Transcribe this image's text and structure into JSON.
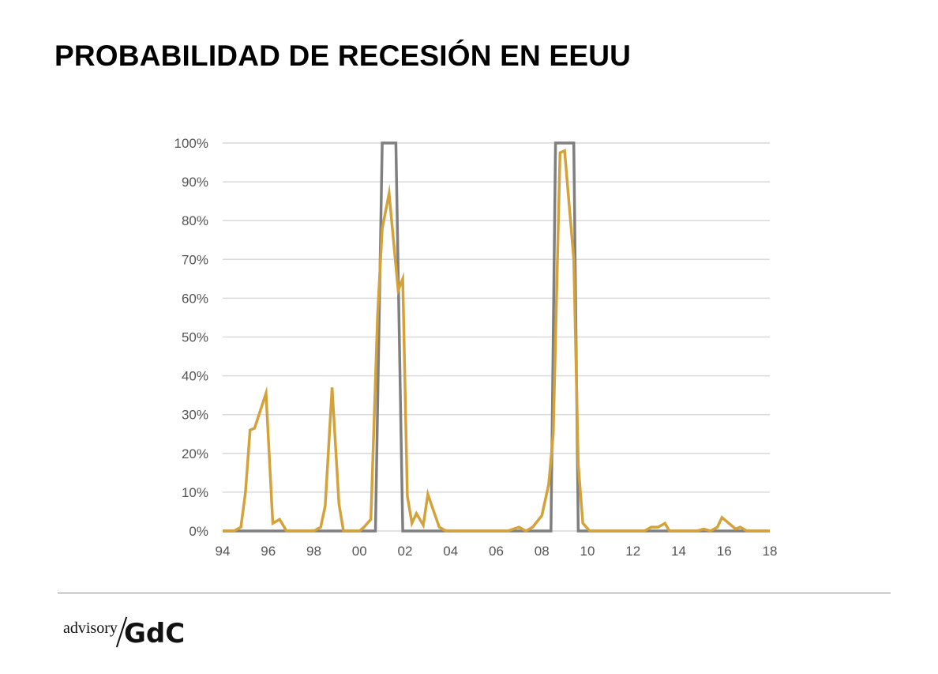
{
  "title": "PROBABILIDAD DE RECESIÓN EN EEUU",
  "logo": {
    "small": "advisory",
    "big": "GdC"
  },
  "colors": {
    "probability": "#d4a23b",
    "recession": "#7f7f7f",
    "grid": "#d9d9d9",
    "axis_text": "#555555"
  },
  "chart_data": {
    "type": "line",
    "title": "",
    "xlabel": "",
    "ylabel": "",
    "xlim": [
      94,
      118
    ],
    "ylim": [
      0,
      100
    ],
    "grid": true,
    "legend": "none",
    "x_tick_labels": [
      "94",
      "96",
      "98",
      "00",
      "02",
      "04",
      "06",
      "08",
      "10",
      "12",
      "14",
      "16",
      "18"
    ],
    "y_tick_labels": [
      "0%",
      "10%",
      "20%",
      "30%",
      "40%",
      "50%",
      "60%",
      "70%",
      "80%",
      "90%",
      "100%"
    ],
    "series": [
      {
        "role": "recession",
        "color": "#7f7f7f",
        "points": [
          [
            94.0,
            0
          ],
          [
            100.7,
            0
          ],
          [
            101.0,
            100
          ],
          [
            101.6,
            100
          ],
          [
            101.9,
            0
          ],
          [
            108.4,
            0
          ],
          [
            108.6,
            100
          ],
          [
            109.4,
            100
          ],
          [
            109.6,
            0
          ],
          [
            118.0,
            0
          ]
        ]
      },
      {
        "role": "probability",
        "color": "#d4a23b",
        "points": [
          [
            94.0,
            0
          ],
          [
            94.5,
            0
          ],
          [
            94.8,
            1
          ],
          [
            95.0,
            10
          ],
          [
            95.2,
            26
          ],
          [
            95.4,
            26.5
          ],
          [
            95.9,
            35.5
          ],
          [
            96.2,
            2
          ],
          [
            96.5,
            3
          ],
          [
            96.8,
            0
          ],
          [
            97.5,
            0
          ],
          [
            98.0,
            0
          ],
          [
            98.3,
            1
          ],
          [
            98.5,
            6.5
          ],
          [
            98.8,
            37
          ],
          [
            99.1,
            7
          ],
          [
            99.3,
            0
          ],
          [
            100.0,
            0
          ],
          [
            100.2,
            1
          ],
          [
            100.5,
            3
          ],
          [
            100.8,
            56
          ],
          [
            101.0,
            78
          ],
          [
            101.3,
            87
          ],
          [
            101.7,
            62
          ],
          [
            101.9,
            65
          ],
          [
            102.1,
            9
          ],
          [
            102.3,
            2
          ],
          [
            102.5,
            4.5
          ],
          [
            102.8,
            1.5
          ],
          [
            103.0,
            9.5
          ],
          [
            103.2,
            6
          ],
          [
            103.5,
            1
          ],
          [
            103.8,
            0
          ],
          [
            106.5,
            0
          ],
          [
            107.0,
            1
          ],
          [
            107.3,
            0
          ],
          [
            107.6,
            1
          ],
          [
            108.0,
            4
          ],
          [
            108.3,
            12
          ],
          [
            108.5,
            25
          ],
          [
            108.8,
            97.5
          ],
          [
            109.0,
            98
          ],
          [
            109.4,
            70
          ],
          [
            109.6,
            17
          ],
          [
            109.8,
            2
          ],
          [
            110.1,
            0
          ],
          [
            112.5,
            0
          ],
          [
            112.8,
            1
          ],
          [
            113.1,
            1
          ],
          [
            113.4,
            2
          ],
          [
            113.6,
            0
          ],
          [
            114.8,
            0
          ],
          [
            115.1,
            0.5
          ],
          [
            115.4,
            0
          ],
          [
            115.7,
            1
          ],
          [
            115.9,
            3.5
          ],
          [
            116.2,
            2
          ],
          [
            116.5,
            0.5
          ],
          [
            116.7,
            1
          ],
          [
            117.0,
            0
          ],
          [
            118.0,
            0
          ]
        ]
      }
    ]
  }
}
